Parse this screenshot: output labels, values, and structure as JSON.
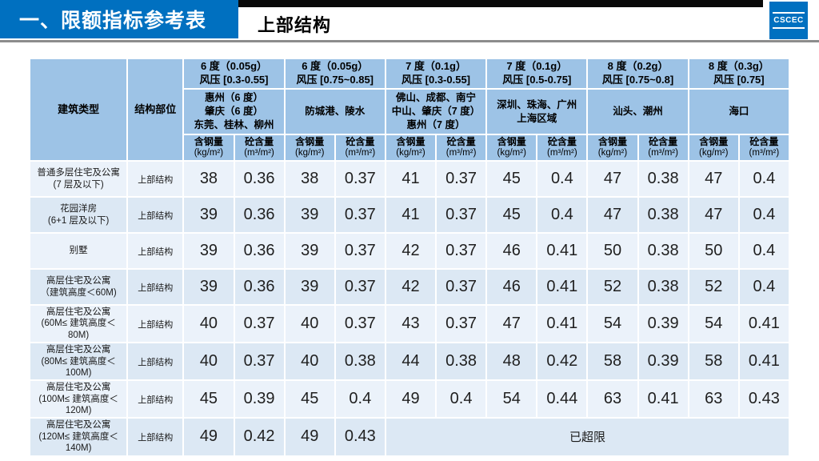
{
  "header_bar": {
    "title": "一、限额指标参考表",
    "subtitle": "上部结构",
    "logo_text": "CSCEC"
  },
  "colors": {
    "bar_blue": "#0070C0",
    "header_blue": "#9DC3E6",
    "row_light": "#EBF2FA",
    "row_dark": "#DCE8F4",
    "rule_gray": "#8C8C8C",
    "strip_black": "#0A0A0A"
  },
  "table": {
    "corner_headers": [
      "建筑类型",
      "结构部位"
    ],
    "groups": [
      {
        "intensity": "6 度（0.05g）",
        "wind": "风压 [0.3-0.55]",
        "cities": "惠州（6 度）\n肇庆（6 度）\n东莞、桂林、柳州"
      },
      {
        "intensity": "6 度（0.05g）",
        "wind": "风压 [0.75~0.85]",
        "cities": "防城港、陵水"
      },
      {
        "intensity": "7 度（0.1g）",
        "wind": "风压 [0.3-0.55]",
        "cities": "佛山、成都、南宁\n中山、肇庆（7 度）\n惠州（7 度）"
      },
      {
        "intensity": "7 度（0.1g）",
        "wind": "风压 [0.5-0.75]",
        "cities": "深圳、珠海、广州\n上海区域"
      },
      {
        "intensity": "8 度（0.2g）",
        "wind": "风压 [0.75~0.8]",
        "cities": "汕头、潮州"
      },
      {
        "intensity": "8 度（0.3g）",
        "wind": "风压 [0.75]",
        "cities": "海口"
      }
    ],
    "measure_headers": {
      "steel_name": "含钢量",
      "steel_unit": "(kg/m²)",
      "concrete_name": "砼含量",
      "concrete_unit": "(m³/m²)"
    },
    "rows": [
      {
        "type": "普通多层住宅及公寓\n(7 层及以下)",
        "part": "上部结构",
        "values": [
          "38",
          "0.36",
          "38",
          "0.37",
          "41",
          "0.37",
          "45",
          "0.4",
          "47",
          "0.38",
          "47",
          "0.4"
        ]
      },
      {
        "type": "花园洋房\n(6+1 层及以下)",
        "part": "上部结构",
        "values": [
          "39",
          "0.36",
          "39",
          "0.37",
          "41",
          "0.37",
          "45",
          "0.4",
          "47",
          "0.38",
          "47",
          "0.4"
        ]
      },
      {
        "type": "别墅",
        "part": "上部结构",
        "values": [
          "39",
          "0.36",
          "39",
          "0.37",
          "42",
          "0.37",
          "46",
          "0.41",
          "50",
          "0.38",
          "50",
          "0.4"
        ]
      },
      {
        "type": "高层住宅及公寓\n（建筑高度＜60M)",
        "part": "上部结构",
        "values": [
          "39",
          "0.36",
          "39",
          "0.37",
          "42",
          "0.37",
          "46",
          "0.41",
          "52",
          "0.38",
          "52",
          "0.4"
        ]
      },
      {
        "type": "高层住宅及公寓\n(60M≤ 建筑高度＜80M)",
        "part": "上部结构",
        "values": [
          "40",
          "0.37",
          "40",
          "0.37",
          "43",
          "0.37",
          "47",
          "0.41",
          "54",
          "0.39",
          "54",
          "0.41"
        ]
      },
      {
        "type": "高层住宅及公寓\n(80M≤ 建筑高度＜100M)",
        "part": "上部结构",
        "values": [
          "40",
          "0.37",
          "40",
          "0.38",
          "44",
          "0.38",
          "48",
          "0.42",
          "58",
          "0.39",
          "58",
          "0.41"
        ]
      },
      {
        "type": "高层住宅及公寓\n(100M≤ 建筑高度＜120M)",
        "part": "上部结构",
        "values": [
          "45",
          "0.39",
          "45",
          "0.4",
          "49",
          "0.4",
          "54",
          "0.44",
          "63",
          "0.41",
          "63",
          "0.43"
        ]
      },
      {
        "type": "高层住宅及公寓\n(120M≤ 建筑高度＜140M)",
        "part": "上部结构",
        "values": [
          "49",
          "0.42",
          "49",
          "0.43"
        ],
        "overflow": "已超限",
        "overflow_span": 8
      }
    ]
  }
}
